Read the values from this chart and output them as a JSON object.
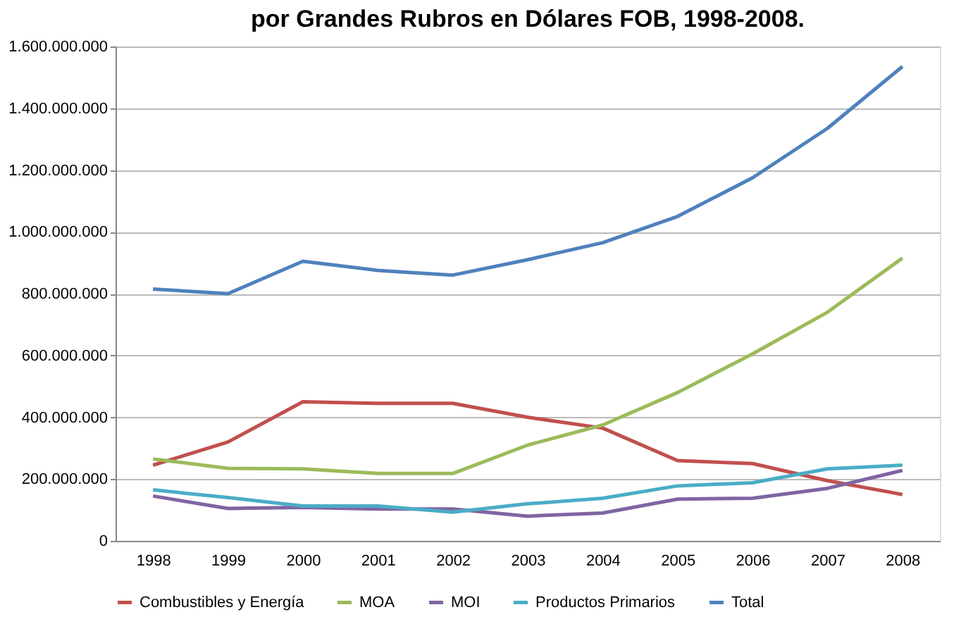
{
  "chart_data": {
    "type": "line",
    "title": "por Grandes Rubros en Dólares FOB, 1998-2008.",
    "categories": [
      "1998",
      "1999",
      "2000",
      "2001",
      "2002",
      "2003",
      "2004",
      "2005",
      "2006",
      "2007",
      "2008"
    ],
    "series": [
      {
        "name": "Combustibles y Energía",
        "color": "#c0504d",
        "values": [
          245000000,
          320000000,
          450000000,
          445000000,
          445000000,
          400000000,
          365000000,
          260000000,
          250000000,
          195000000,
          150000000
        ]
      },
      {
        "name": "MOA",
        "color": "#9bbb59",
        "values": [
          265000000,
          235000000,
          233000000,
          218000000,
          218000000,
          310000000,
          375000000,
          480000000,
          605000000,
          740000000,
          915000000
        ]
      },
      {
        "name": "MOI",
        "color": "#8064a2",
        "values": [
          145000000,
          105000000,
          108000000,
          103000000,
          103000000,
          80000000,
          90000000,
          135000000,
          138000000,
          170000000,
          228000000
        ]
      },
      {
        "name": "Productos Primarios",
        "color": "#4bacc6",
        "values": [
          165000000,
          140000000,
          113000000,
          113000000,
          93000000,
          120000000,
          138000000,
          178000000,
          188000000,
          233000000,
          245000000
        ]
      },
      {
        "name": "Total",
        "color": "#4f81bd",
        "values": [
          815000000,
          800000000,
          905000000,
          875000000,
          860000000,
          910000000,
          965000000,
          1050000000,
          1175000000,
          1335000000,
          1535000000
        ]
      }
    ],
    "ylim": [
      0,
      1600000000
    ],
    "yticks": [
      0,
      {
        "value": 200000000,
        "label": "200.000.000"
      },
      {
        "value": 400000000,
        "label": "400.000.000"
      },
      {
        "value": 600000000,
        "label": "600.000.000"
      },
      {
        "value": 800000000,
        "label": "800.000.000"
      },
      {
        "value": 1000000000,
        "label": "1.000.000.000"
      },
      {
        "value": 1200000000,
        "label": "1.200.000.000"
      },
      {
        "value": 1400000000,
        "label": "1.400.000.000"
      },
      {
        "value": 1600000000,
        "label": "1.600.000.000"
      }
    ],
    "grid": "y",
    "legend": "bottom",
    "marker": "none",
    "line_style": "solid"
  }
}
